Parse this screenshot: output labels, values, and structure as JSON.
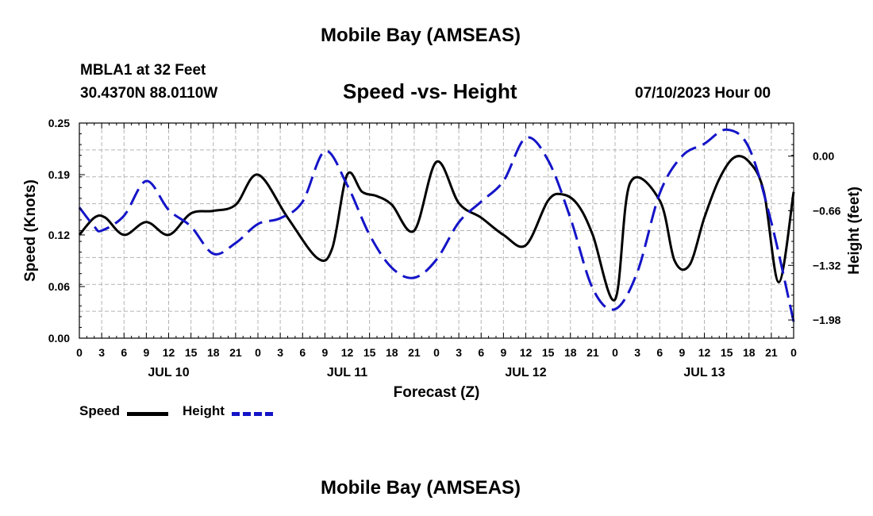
{
  "page": {
    "title": "Mobile Bay (AMSEAS)",
    "station": "MBLA1 at 32 Feet",
    "coords": "30.4370N  88.0110W",
    "datetime": "07/10/2023 Hour 00",
    "title_repeat": "Mobile Bay (AMSEAS)"
  },
  "colors": {
    "speed": "#000000",
    "height": "#1414c8",
    "grid": "#b4b4b4"
  },
  "chart_data": {
    "type": "line",
    "title": "Speed -vs- Height",
    "xlabel": "Forecast (Z)",
    "ylabel": "Speed (Knots)",
    "y2label": "Height (feet)",
    "x_unit": "hours since 07/10/2023 00Z",
    "xlim": [
      0,
      96
    ],
    "ylim": [
      0,
      0.25
    ],
    "y2lim": [
      -2.2,
      0.4
    ],
    "x_ticks": [
      0,
      3,
      6,
      9,
      12,
      15,
      18,
      21,
      24,
      27,
      30,
      33,
      36,
      39,
      42,
      45,
      48,
      51,
      54,
      57,
      60,
      63,
      66,
      69,
      72,
      75,
      78,
      81,
      84,
      87,
      90,
      93,
      96
    ],
    "x_tick_labels": [
      "0",
      "3",
      "6",
      "9",
      "12",
      "15",
      "18",
      "21",
      "0",
      "3",
      "6",
      "9",
      "12",
      "15",
      "18",
      "21",
      "0",
      "3",
      "6",
      "9",
      "12",
      "15",
      "18",
      "21",
      "0",
      "3",
      "6",
      "9",
      "12",
      "15",
      "18",
      "21",
      "0"
    ],
    "day_labels": [
      {
        "x": 12,
        "label": "JUL 10"
      },
      {
        "x": 36,
        "label": "JUL 11"
      },
      {
        "x": 60,
        "label": "JUL 12"
      },
      {
        "x": 84,
        "label": "JUL 13"
      }
    ],
    "y_ticks": [
      0.0,
      0.06,
      0.12,
      0.19,
      0.25
    ],
    "y_tick_labels": [
      "0.00",
      "0.06",
      "0.12",
      "0.19",
      "0.25"
    ],
    "y2_ticks": [
      -1.98,
      -1.32,
      -0.66,
      0.0
    ],
    "y2_tick_labels": [
      "−1.98",
      "−1.32",
      "−0.66",
      "0.00"
    ],
    "grid": true,
    "legend": {
      "position": "bottom-left",
      "entries": [
        "Speed",
        "Height"
      ]
    },
    "series": [
      {
        "name": "Speed",
        "axis": "left",
        "style": "solid",
        "x": [
          0,
          2,
          3.5,
          6,
          9,
          12,
          15,
          18,
          21,
          24,
          28,
          32,
          34,
          36,
          38,
          40,
          42,
          45,
          48,
          51,
          54,
          57,
          60,
          63,
          65,
          67,
          69,
          72,
          74,
          78,
          80,
          82,
          84,
          86,
          88,
          90,
          92,
          94,
          96
        ],
        "values": [
          0.12,
          0.14,
          0.14,
          0.12,
          0.135,
          0.12,
          0.145,
          0.148,
          0.155,
          0.19,
          0.14,
          0.093,
          0.105,
          0.19,
          0.17,
          0.165,
          0.155,
          0.125,
          0.205,
          0.157,
          0.14,
          0.12,
          0.108,
          0.16,
          0.167,
          0.155,
          0.12,
          0.045,
          0.18,
          0.16,
          0.09,
          0.085,
          0.14,
          0.185,
          0.21,
          0.205,
          0.17,
          0.065,
          0.17
        ]
      },
      {
        "name": "Height",
        "axis": "right",
        "style": "dashed",
        "x": [
          0,
          2,
          3,
          6,
          9,
          12,
          15,
          18,
          21,
          24,
          27,
          30,
          33,
          36,
          39,
          42,
          45,
          48,
          51,
          54,
          57,
          60,
          63,
          66,
          69,
          72,
          75,
          78,
          81,
          84,
          87,
          90,
          93,
          96
        ],
        "values": [
          -0.62,
          -0.85,
          -0.9,
          -0.72,
          -0.3,
          -0.65,
          -0.85,
          -1.18,
          -1.05,
          -0.82,
          -0.75,
          -0.55,
          0.06,
          -0.35,
          -0.95,
          -1.35,
          -1.47,
          -1.25,
          -0.8,
          -0.55,
          -0.3,
          0.22,
          -0.05,
          -0.75,
          -1.6,
          -1.85,
          -1.4,
          -0.45,
          0.0,
          0.15,
          0.32,
          0.1,
          -0.8,
          -2.0
        ]
      }
    ]
  }
}
